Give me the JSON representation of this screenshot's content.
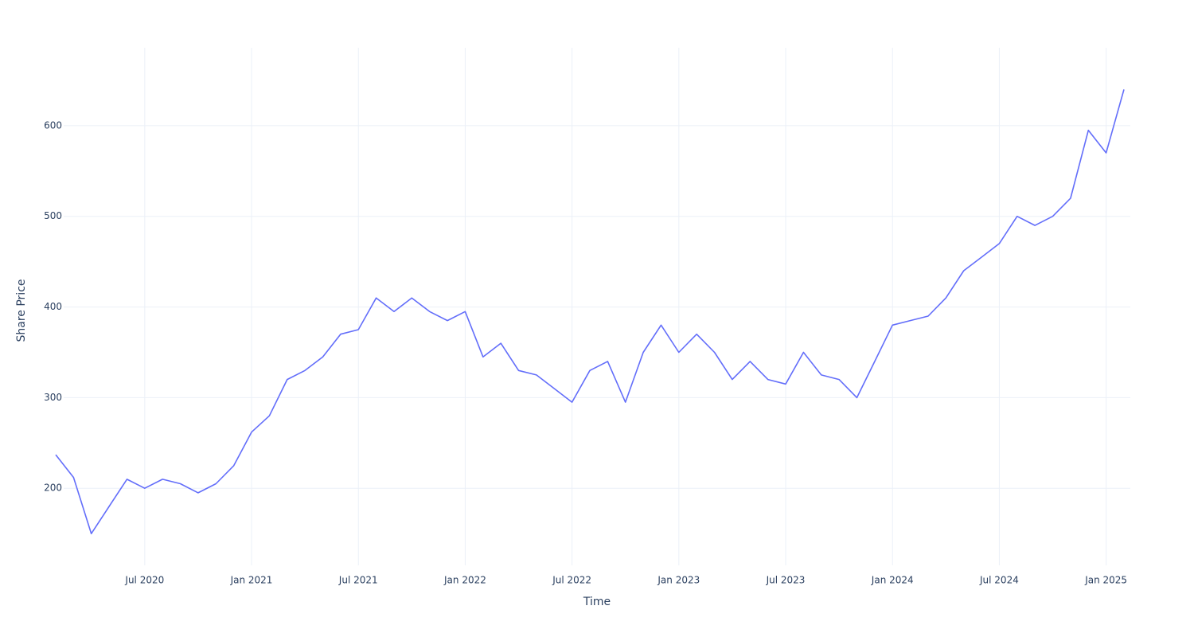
{
  "chart_data": {
    "type": "line",
    "x_label": "Time",
    "y_label": "Share Price",
    "x": [
      "2020-02",
      "2020-03",
      "2020-04",
      "2020-05",
      "2020-06",
      "2020-07",
      "2020-08",
      "2020-09",
      "2020-10",
      "2020-11",
      "2020-12",
      "2021-01",
      "2021-02",
      "2021-03",
      "2021-04",
      "2021-05",
      "2021-06",
      "2021-07",
      "2021-08",
      "2021-09",
      "2021-10",
      "2021-11",
      "2021-12",
      "2022-01",
      "2022-02",
      "2022-03",
      "2022-04",
      "2022-05",
      "2022-06",
      "2022-07",
      "2022-08",
      "2022-09",
      "2022-10",
      "2022-11",
      "2022-12",
      "2023-01",
      "2023-02",
      "2023-03",
      "2023-04",
      "2023-05",
      "2023-06",
      "2023-07",
      "2023-08",
      "2023-09",
      "2023-10",
      "2023-11",
      "2023-12",
      "2024-01",
      "2024-02",
      "2024-03",
      "2024-04",
      "2024-05",
      "2024-06",
      "2024-07",
      "2024-08",
      "2024-09",
      "2024-10",
      "2024-11",
      "2024-12",
      "2025-01",
      "2025-02"
    ],
    "series": [
      {
        "name": "Share Price",
        "color": "#636efa",
        "values": [
          237,
          212,
          150,
          180,
          210,
          200,
          210,
          205,
          195,
          205,
          225,
          262,
          280,
          320,
          330,
          345,
          370,
          375,
          410,
          395,
          410,
          395,
          385,
          395,
          345,
          360,
          330,
          325,
          310,
          295,
          330,
          340,
          295,
          350,
          380,
          350,
          370,
          350,
          320,
          340,
          320,
          315,
          350,
          325,
          320,
          300,
          340,
          380,
          385,
          390,
          410,
          440,
          455,
          470,
          500,
          490,
          500,
          520,
          595,
          570,
          640
        ]
      }
    ],
    "xlim": [
      "2020-02",
      "2025-02"
    ],
    "xticks": [
      {
        "value": "2020-07",
        "label": "Jul 2020"
      },
      {
        "value": "2021-01",
        "label": "Jan 2021"
      },
      {
        "value": "2021-07",
        "label": "Jul 2021"
      },
      {
        "value": "2022-01",
        "label": "Jan 2022"
      },
      {
        "value": "2022-07",
        "label": "Jul 2022"
      },
      {
        "value": "2023-01",
        "label": "Jan 2023"
      },
      {
        "value": "2023-07",
        "label": "Jul 2023"
      },
      {
        "value": "2024-01",
        "label": "Jan 2024"
      },
      {
        "value": "2024-07",
        "label": "Jul 2024"
      },
      {
        "value": "2025-01",
        "label": "Jan 2025"
      }
    ],
    "ylim": [
      115,
      686
    ],
    "yticks": [
      200,
      300,
      400,
      500,
      600
    ],
    "grid": true
  }
}
